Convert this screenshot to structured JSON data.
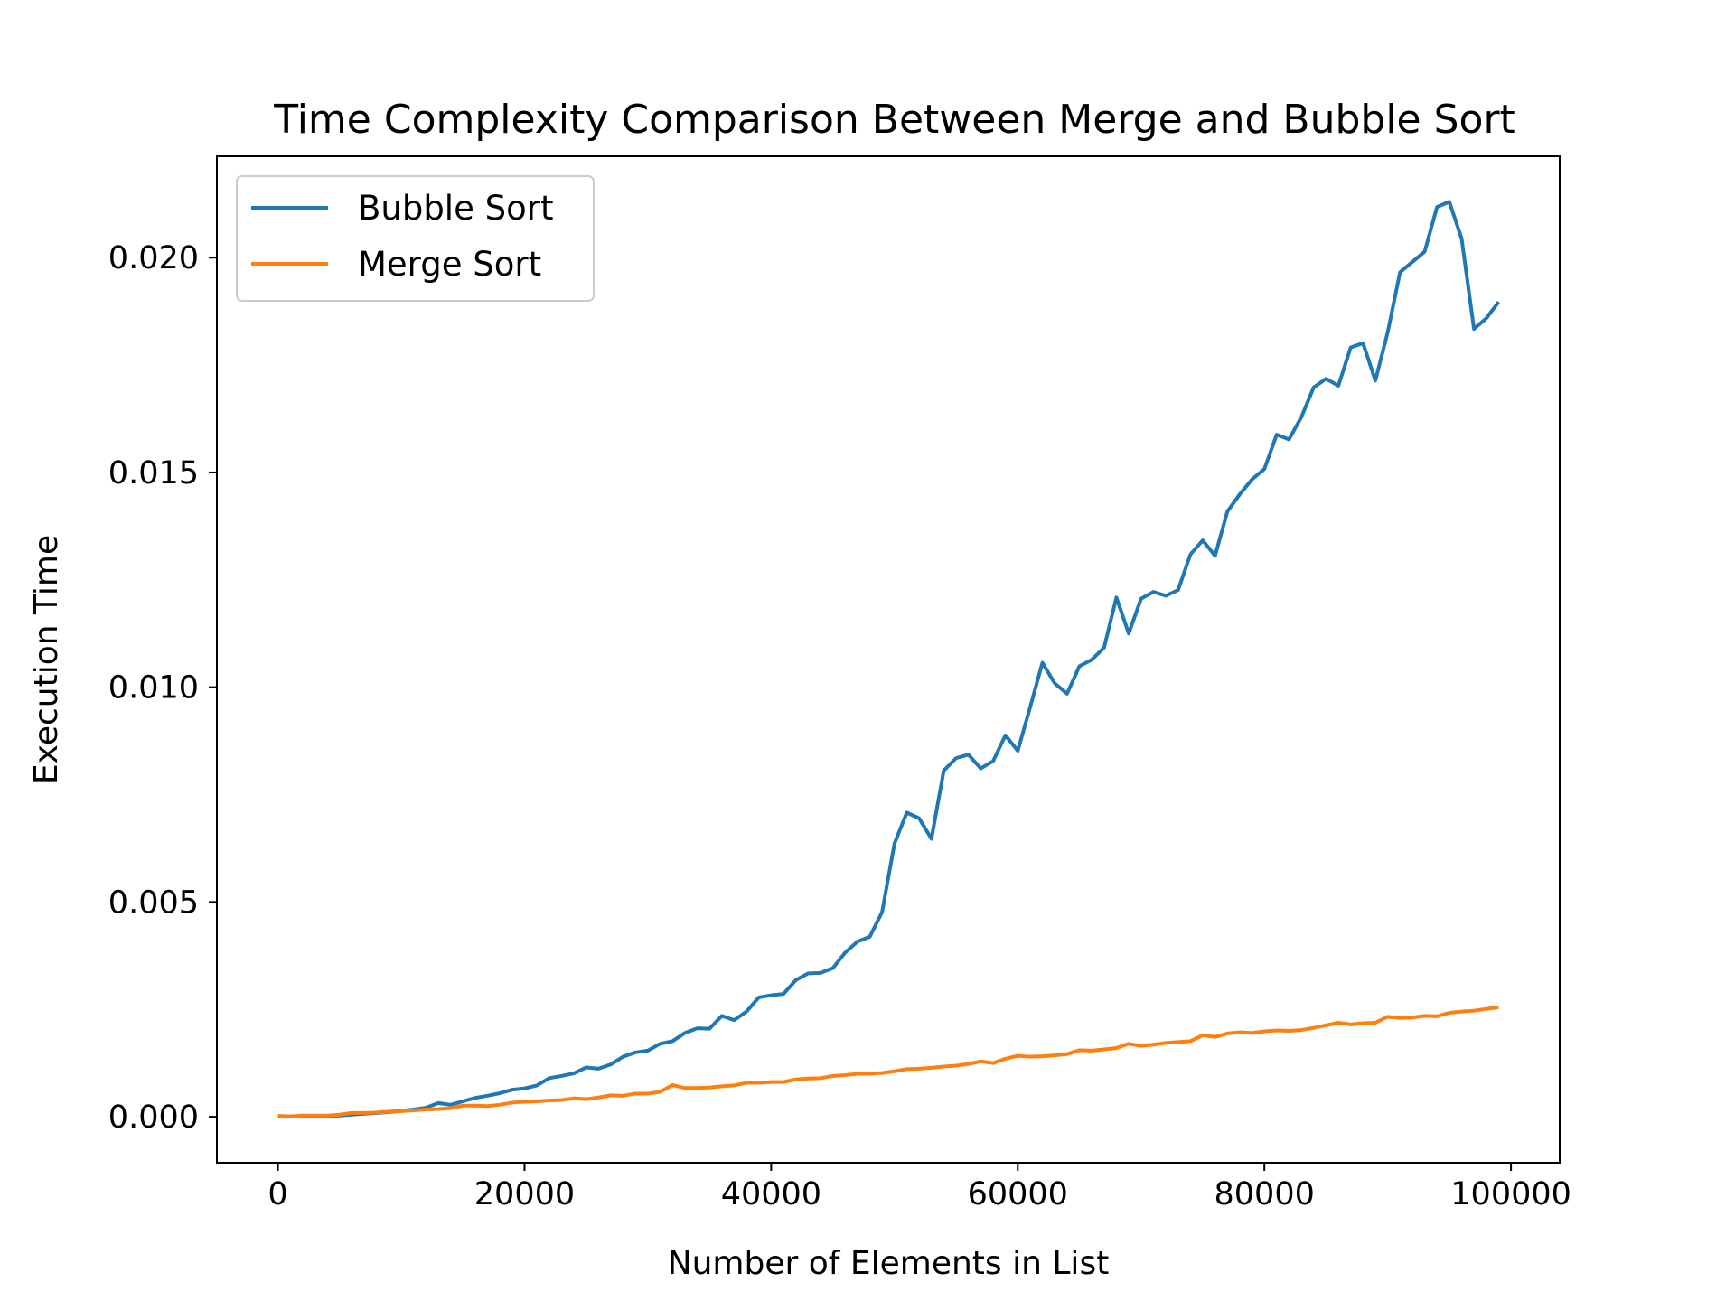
{
  "chart_data": {
    "type": "line",
    "title": "Time Complexity Comparison Between Merge and Bubble Sort",
    "xlabel": "Number of Elements in List",
    "ylabel": "Execution Time",
    "xlim": [
      -4950,
      103950
    ],
    "ylim": [
      -0.00107,
      0.02236
    ],
    "xticks": [
      0,
      20000,
      40000,
      60000,
      80000,
      100000
    ],
    "xtick_labels": [
      "0",
      "20000",
      "40000",
      "60000",
      "80000",
      "100000"
    ],
    "yticks": [
      0.0,
      0.005,
      0.01,
      0.015,
      0.02
    ],
    "ytick_labels": [
      "0.000",
      "0.005",
      "0.010",
      "0.015",
      "0.020"
    ],
    "grid": false,
    "legend_position": "upper-left",
    "x": [
      0,
      1000,
      2000,
      3000,
      4000,
      5000,
      6000,
      7000,
      8000,
      9000,
      10000,
      11000,
      12000,
      13000,
      14000,
      15000,
      16000,
      17000,
      18000,
      19000,
      20000,
      21000,
      22000,
      23000,
      24000,
      25000,
      26000,
      27000,
      28000,
      29000,
      30000,
      31000,
      32000,
      33000,
      34000,
      35000,
      36000,
      37000,
      38000,
      39000,
      40000,
      41000,
      42000,
      43000,
      44000,
      45000,
      46000,
      47000,
      48000,
      49000,
      50000,
      51000,
      52000,
      53000,
      54000,
      55000,
      56000,
      57000,
      58000,
      59000,
      60000,
      61000,
      62000,
      63000,
      64000,
      65000,
      66000,
      67000,
      68000,
      69000,
      70000,
      71000,
      72000,
      73000,
      74000,
      75000,
      76000,
      77000,
      78000,
      79000,
      80000,
      81000,
      82000,
      83000,
      84000,
      85000,
      86000,
      87000,
      88000,
      89000,
      90000,
      91000,
      92000,
      93000,
      94000,
      95000,
      96000,
      97000,
      98000,
      99000
    ],
    "series": [
      {
        "name": "Bubble Sort",
        "color": "#1f77b4",
        "values": [
          0.0,
          0.0,
          1e-05,
          1e-05,
          2e-05,
          3e-05,
          5e-05,
          7e-05,
          9e-05,
          0.00011,
          0.00014,
          0.00017,
          0.00021,
          0.00032,
          0.00028,
          0.00036,
          0.00044,
          0.00049,
          0.00055,
          0.00063,
          0.00066,
          0.00073,
          0.0009,
          0.00095,
          0.00101,
          0.00115,
          0.00112,
          0.00122,
          0.0014,
          0.0015,
          0.00154,
          0.0017,
          0.00176,
          0.00195,
          0.00206,
          0.00205,
          0.00235,
          0.00225,
          0.00245,
          0.00278,
          0.00283,
          0.00286,
          0.00318,
          0.00334,
          0.00335,
          0.00346,
          0.00382,
          0.00408,
          0.00419,
          0.00477,
          0.00636,
          0.00708,
          0.00695,
          0.00647,
          0.00806,
          0.00835,
          0.00843,
          0.00811,
          0.00828,
          0.00888,
          0.00852,
          0.00953,
          0.01057,
          0.01009,
          0.00985,
          0.01049,
          0.01064,
          0.01092,
          0.01209,
          0.01125,
          0.01206,
          0.01222,
          0.01213,
          0.01226,
          0.01309,
          0.01342,
          0.01306,
          0.01409,
          0.01449,
          0.01484,
          0.01508,
          0.01588,
          0.01577,
          0.01629,
          0.01698,
          0.01718,
          0.01702,
          0.01791,
          0.01801,
          0.01714,
          0.01826,
          0.01966,
          0.0199,
          0.02014,
          0.02118,
          0.0213,
          0.02044,
          0.01834,
          0.01859,
          0.01897
        ]
      },
      {
        "name": "Merge Sort",
        "color": "#ff7f0e",
        "values": [
          2e-05,
          1e-05,
          3e-05,
          3e-05,
          3e-05,
          5e-05,
          9e-05,
          9e-05,
          0.0001,
          0.00012,
          0.00013,
          0.00015,
          0.00017,
          0.00018,
          0.0002,
          0.00026,
          0.00026,
          0.00025,
          0.00028,
          0.00033,
          0.00035,
          0.00036,
          0.00038,
          0.00039,
          0.00043,
          0.00041,
          0.00045,
          0.0005,
          0.00049,
          0.00054,
          0.00054,
          0.00058,
          0.00074,
          0.00067,
          0.00067,
          0.00068,
          0.00071,
          0.00073,
          0.00079,
          0.00079,
          0.00081,
          0.00081,
          0.00087,
          0.00089,
          0.0009,
          0.00095,
          0.00097,
          0.001,
          0.001,
          0.00102,
          0.00106,
          0.00111,
          0.00112,
          0.00114,
          0.00117,
          0.00119,
          0.00123,
          0.00129,
          0.00125,
          0.00135,
          0.00142,
          0.0014,
          0.00141,
          0.00143,
          0.00146,
          0.00155,
          0.00154,
          0.00157,
          0.0016,
          0.0017,
          0.00165,
          0.00168,
          0.00172,
          0.00174,
          0.00176,
          0.0019,
          0.00186,
          0.00194,
          0.00197,
          0.00195,
          0.00199,
          0.00201,
          0.002,
          0.00202,
          0.00207,
          0.00213,
          0.00219,
          0.00215,
          0.00218,
          0.00219,
          0.00233,
          0.0023,
          0.00231,
          0.00235,
          0.00234,
          0.00242,
          0.00245,
          0.00247,
          0.00251,
          0.00255
        ]
      }
    ]
  }
}
